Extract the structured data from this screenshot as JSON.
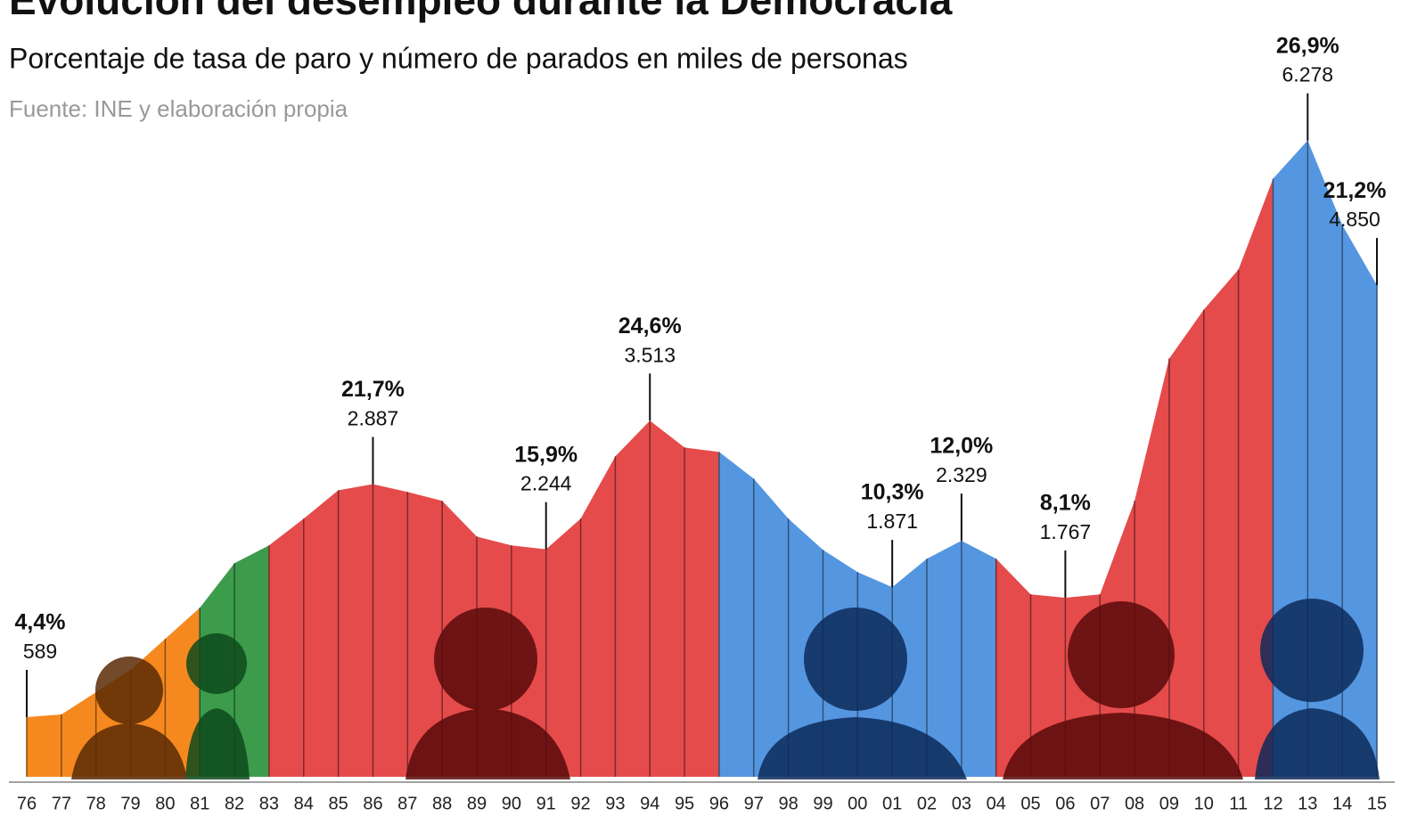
{
  "chart_data": {
    "type": "area",
    "title": "Evolución del desempleo durante la Democracia",
    "subtitle": "Porcentaje de tasa de paro y número de parados en miles de personas",
    "source": "Fuente: INE y elaboración propia",
    "categories": [
      "76",
      "77",
      "78",
      "79",
      "80",
      "81",
      "82",
      "83",
      "84",
      "85",
      "86",
      "87",
      "88",
      "89",
      "90",
      "91",
      "92",
      "93",
      "94",
      "95",
      "96",
      "97",
      "98",
      "99",
      "00",
      "01",
      "02",
      "03",
      "04",
      "05",
      "06",
      "07",
      "08",
      "09",
      "10",
      "11",
      "12",
      "13",
      "14",
      "15"
    ],
    "values": [
      589,
      615,
      834,
      1054,
      1361,
      1668,
      2107,
      2283,
      2546,
      2827,
      2887,
      2810,
      2722,
      2370,
      2283,
      2244,
      2546,
      3161,
      3513,
      3249,
      3205,
      2941,
      2546,
      2239,
      2019,
      1871,
      2151,
      2329,
      2151,
      1800,
      1767,
      1800,
      2722,
      4126,
      4609,
      5004,
      5900,
      6278,
      5443,
      4850
    ],
    "colors": [
      "#f5891f",
      "#f5891f",
      "#f5891f",
      "#f5891f",
      "#f5891f",
      "#3d9b4c",
      "#3d9b4c",
      "#e54b4b",
      "#e54b4b",
      "#e54b4b",
      "#e54b4b",
      "#e54b4b",
      "#e54b4b",
      "#e54b4b",
      "#e54b4b",
      "#e54b4b",
      "#e54b4b",
      "#e54b4b",
      "#e54b4b",
      "#e54b4b",
      "#5596e0",
      "#5596e0",
      "#5596e0",
      "#5596e0",
      "#5596e0",
      "#5596e0",
      "#5596e0",
      "#5596e0",
      "#e54b4b",
      "#e54b4b",
      "#e54b4b",
      "#e54b4b",
      "#e54b4b",
      "#e54b4b",
      "#e54b4b",
      "#e54b4b",
      "#5596e0",
      "#5596e0",
      "#5596e0",
      "#5596e0"
    ],
    "ylim": [
      0,
      7400
    ],
    "annotations": [
      {
        "rate": {
          "value": 4.4,
          "label": "4,4%"
        },
        "number": {
          "value": 589,
          "label": "589"
        }
      },
      {
        "rate": {
          "value": 21.7,
          "label": "21,7%"
        },
        "number": {
          "value": 2887,
          "label": "2.887"
        }
      },
      {
        "rate": {
          "value": 15.9,
          "label": "15,9%"
        },
        "number": {
          "value": 2244,
          "label": "2.244"
        }
      },
      {
        "rate": {
          "value": 24.6,
          "label": "24,6%"
        },
        "number": {
          "value": 3513,
          "label": "3.513"
        }
      },
      {
        "rate": {
          "value": 10.3,
          "label": "10,3%"
        },
        "number": {
          "value": 1871,
          "label": "1.871"
        }
      },
      {
        "rate": {
          "value": 12.0,
          "label": "12,0%"
        },
        "number": {
          "value": 2329,
          "label": "2.329"
        }
      },
      {
        "rate": {
          "value": 8.1,
          "label": "8,1%"
        },
        "number": {
          "value": 1767,
          "label": "1.767"
        }
      },
      {
        "rate": {
          "value": 26.9,
          "label": "26,9%"
        },
        "number": {
          "value": 6278,
          "label": "6.278"
        }
      },
      {
        "rate": {
          "value": 21.2,
          "label": "21,2%"
        },
        "number": {
          "value": 4850,
          "label": "4.850"
        }
      }
    ]
  }
}
